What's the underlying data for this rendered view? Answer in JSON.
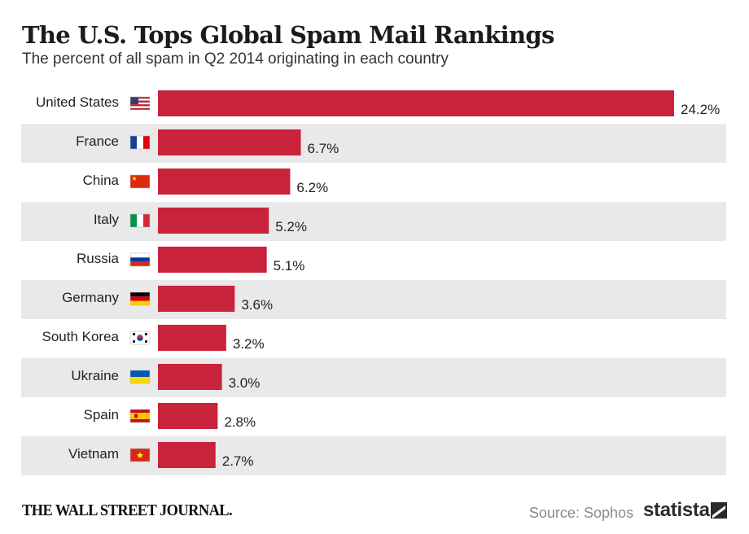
{
  "header": {
    "title": "The U.S. Tops Global Spam Mail Rankings",
    "subtitle": "The percent of all spam in Q2 2014 originating in each country"
  },
  "colors": {
    "bar": "#c8233a",
    "row_shade": "#e9e9e9",
    "text": "#222222",
    "source": "#8a8a8a"
  },
  "flags": [
    "us-flag-icon",
    "france-flag-icon",
    "china-flag-icon",
    "italy-flag-icon",
    "russia-flag-icon",
    "germany-flag-icon",
    "south-korea-flag-icon",
    "ukraine-flag-icon",
    "spain-flag-icon",
    "vietnam-flag-icon"
  ],
  "chart_data": {
    "type": "bar",
    "orientation": "horizontal",
    "title": "The U.S. Tops Global Spam Mail Rankings",
    "subtitle": "The percent of all spam in Q2 2014 originating in each country",
    "categories": [
      "United States",
      "France",
      "China",
      "Italy",
      "Russia",
      "Germany",
      "South Korea",
      "Ukraine",
      "Spain",
      "Vietnam"
    ],
    "values": [
      24.2,
      6.7,
      6.2,
      5.2,
      5.1,
      3.6,
      3.2,
      3.0,
      2.8,
      2.7
    ],
    "value_labels": [
      "24.2%",
      "6.7%",
      "6.2%",
      "5.2%",
      "5.1%",
      "3.6%",
      "3.2%",
      "3.0%",
      "2.8%",
      "2.7%"
    ],
    "grid": false,
    "legend": "none"
  },
  "footer": {
    "logo": "THE WALL STREET JOURNAL.",
    "source": "Source: Sophos",
    "brand": "statista"
  }
}
